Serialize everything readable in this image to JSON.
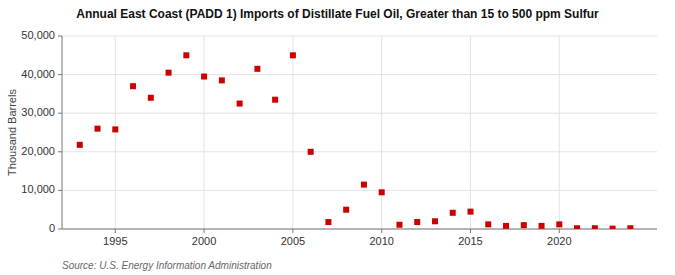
{
  "chart_data": {
    "type": "scatter",
    "title": "Annual East Coast (PADD 1) Imports of Distillate Fuel Oil, Greater than 15 to 500 ppm Sulfur",
    "ylabel": "Thousand Barrels",
    "annotations": [
      "Source: U.S. Energy Information Administration"
    ],
    "x": [
      1993,
      1994,
      1995,
      1996,
      1997,
      1998,
      1999,
      2000,
      2001,
      2002,
      2003,
      2004,
      2005,
      2006,
      2007,
      2008,
      2009,
      2010,
      2011,
      2012,
      2013,
      2014,
      2015,
      2016,
      2017,
      2018,
      2019,
      2020,
      2021,
      2022,
      2023,
      2024
    ],
    "values": [
      21800,
      26000,
      25800,
      37000,
      34000,
      40500,
      45000,
      39500,
      38500,
      32500,
      41500,
      33500,
      45000,
      20000,
      1800,
      5000,
      11500,
      9500,
      1100,
      1800,
      2000,
      4200,
      4500,
      1200,
      800,
      1000,
      800,
      1200,
      200,
      200,
      100,
      200
    ],
    "color": "#cc0000",
    "marker": "square",
    "xlim": [
      1992.0,
      2025.5
    ],
    "ylim": [
      0,
      50000
    ],
    "xticks": [
      1995,
      2000,
      2005,
      2010,
      2015,
      2020
    ],
    "yticks": [
      0,
      {
        "value": 10000,
        "label": "10,000"
      },
      {
        "value": 20000,
        "label": "20,000"
      },
      {
        "value": 30000,
        "label": "30,000"
      },
      {
        "value": 40000,
        "label": "40,000"
      },
      {
        "value": 50000,
        "label": "50,000"
      }
    ],
    "grid": true
  }
}
